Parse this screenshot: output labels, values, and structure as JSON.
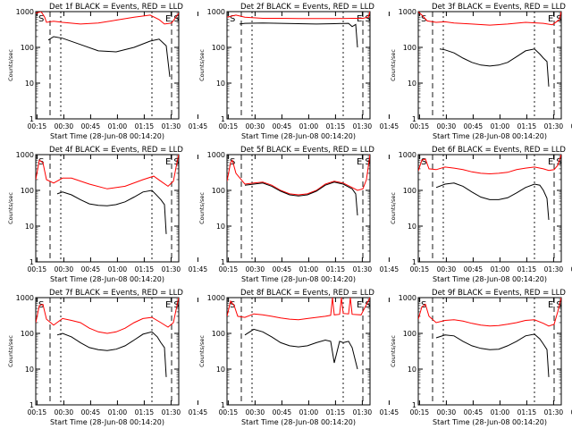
{
  "chart_data": [
    {
      "type": "line",
      "title": "Det 1f BLACK = Events, RED = LLD",
      "xlabel": "Start Time (28-Jun-08 00:14:20)",
      "ylabel": "Counts/sec",
      "ylim": [
        1,
        1000
      ],
      "yscale": "log",
      "x_ticks": [
        "00:15",
        "00:30",
        "00:45",
        "01:00",
        "01:15",
        "01:30",
        "01:45"
      ],
      "y_ticks": [
        "1",
        "10",
        "100",
        "1000"
      ],
      "markers": {
        "S_left": "S",
        "E": "E",
        "S_right": "S"
      },
      "series": [
        {
          "color": "#ff0000",
          "x": [
            0,
            3,
            5,
            6,
            10,
            15,
            25,
            35,
            45,
            55,
            64,
            69,
            72,
            76,
            80
          ],
          "y": [
            900,
            1000,
            700,
            500,
            540,
            500,
            450,
            480,
            580,
            700,
            800,
            600,
            450,
            480,
            900
          ]
        },
        {
          "color": "#000000",
          "x": [
            7,
            10,
            15,
            25,
            35,
            45,
            55,
            64,
            69,
            73,
            75
          ],
          "y": [
            160,
            200,
            180,
            120,
            80,
            75,
            100,
            150,
            170,
            110,
            15
          ]
        }
      ]
    },
    {
      "type": "line",
      "title": "Det 2f BLACK = Events, RED = LLD",
      "xlabel": "Start Time (28-Jun-08 00:14:20)",
      "ylabel": "Counts/sec",
      "ylim": [
        1,
        1000
      ],
      "yscale": "log",
      "x_ticks": [
        "00:15",
        "00:30",
        "00:45",
        "01:00",
        "01:15",
        "01:30",
        "01:45"
      ],
      "y_ticks": [
        "1",
        "10",
        "100",
        "1000"
      ],
      "markers": {
        "S_left": "S",
        "E": "E",
        "S_right": "S"
      },
      "series": [
        {
          "color": "#ff0000",
          "x": [
            0,
            5,
            10,
            20,
            30,
            40,
            50,
            60,
            70,
            76,
            79,
            80
          ],
          "y": [
            700,
            800,
            700,
            650,
            650,
            640,
            640,
            640,
            650,
            650,
            700,
            1000
          ]
        },
        {
          "color": "#000000",
          "x": [
            7,
            10,
            20,
            30,
            40,
            50,
            60,
            68,
            70,
            72,
            73
          ],
          "y": [
            450,
            470,
            480,
            470,
            460,
            450,
            460,
            470,
            380,
            440,
            100
          ]
        }
      ]
    },
    {
      "type": "line",
      "title": "Det 3f BLACK = Events, RED = LLD",
      "xlabel": "Start Time (28-Jun-08 00:14:20)",
      "ylabel": "Counts/sec",
      "ylim": [
        1,
        1000
      ],
      "yscale": "log",
      "x_ticks": [
        "00:15",
        "00:30",
        "00:45",
        "01:00",
        "01:15",
        "01:30",
        "01:45"
      ],
      "y_ticks": [
        "1",
        "10",
        "100",
        "1000"
      ],
      "markers": {
        "S_left": "S",
        "E": "E",
        "S_right": "S"
      },
      "series": [
        {
          "color": "#ff0000",
          "x": [
            0,
            2,
            5,
            10,
            15,
            20,
            30,
            40,
            50,
            60,
            70,
            75,
            79,
            80
          ],
          "y": [
            1000,
            800,
            550,
            500,
            520,
            480,
            450,
            420,
            450,
            500,
            470,
            430,
            600,
            1000
          ]
        },
        {
          "color": "#000000",
          "x": [
            12,
            15,
            20,
            25,
            30,
            35,
            40,
            45,
            50,
            55,
            60,
            65,
            68,
            70,
            72,
            73
          ],
          "y": [
            90,
            85,
            70,
            50,
            38,
            32,
            30,
            32,
            38,
            55,
            80,
            90,
            65,
            50,
            40,
            8
          ]
        }
      ]
    },
    {
      "type": "line",
      "title": "Det 4f BLACK = Events, RED = LLD",
      "xlabel": "Start Time (28-Jun-08 00:14:20)",
      "ylabel": "Counts/sec",
      "ylim": [
        1,
        1000
      ],
      "yscale": "log",
      "x_ticks": [
        "00:15",
        "00:30",
        "00:45",
        "01:00",
        "01:15",
        "01:30",
        "01:45"
      ],
      "y_ticks": [
        "1",
        "10",
        "100",
        "1000"
      ],
      "markers": {
        "S_left": "S",
        "E": "E",
        "S_right": "S"
      },
      "series": [
        {
          "color": "#ff0000",
          "x": [
            0,
            2,
            4,
            6,
            10,
            15,
            20,
            30,
            40,
            50,
            60,
            66,
            70,
            74,
            77,
            79,
            80
          ],
          "y": [
            200,
            700,
            600,
            200,
            160,
            220,
            220,
            150,
            110,
            130,
            200,
            250,
            180,
            130,
            180,
            600,
            1000
          ]
        },
        {
          "color": "#000000",
          "x": [
            12,
            15,
            20,
            25,
            30,
            35,
            40,
            45,
            50,
            55,
            60,
            65,
            68,
            70,
            72,
            73
          ],
          "y": [
            80,
            90,
            75,
            55,
            42,
            38,
            37,
            40,
            48,
            65,
            90,
            100,
            70,
            55,
            40,
            6
          ]
        }
      ]
    },
    {
      "type": "line",
      "title": "Det 5f BLACK = Events, RED = LLD",
      "xlabel": "Start Time (28-Jun-08 00:14:20)",
      "ylabel": "Counts/sec",
      "ylim": [
        1,
        1000
      ],
      "yscale": "log",
      "x_ticks": [
        "00:15",
        "00:30",
        "00:45",
        "01:00",
        "01:15",
        "01:30",
        "01:45"
      ],
      "y_ticks": [
        "1",
        "10",
        "100",
        "1000"
      ],
      "markers": {
        "S_left": "S",
        "E": "E",
        "S_right": "S"
      },
      "series": [
        {
          "color": "#ff0000",
          "x": [
            0,
            2,
            3,
            5,
            10,
            15,
            20,
            25,
            30,
            35,
            40,
            45,
            50,
            55,
            60,
            65,
            70,
            73,
            76,
            78,
            80
          ],
          "y": [
            180,
            600,
            700,
            300,
            150,
            160,
            170,
            140,
            100,
            80,
            75,
            80,
            100,
            150,
            180,
            160,
            120,
            100,
            110,
            200,
            1000
          ]
        },
        {
          "color": "#000000",
          "x": [
            10,
            15,
            20,
            25,
            30,
            35,
            40,
            45,
            50,
            55,
            60,
            65,
            70,
            72,
            73
          ],
          "y": [
            140,
            150,
            160,
            130,
            95,
            75,
            70,
            75,
            95,
            140,
            170,
            150,
            110,
            80,
            20
          ]
        }
      ]
    },
    {
      "type": "line",
      "title": "Det 6f BLACK = Events, RED = LLD",
      "xlabel": "Start Time (28-Jun-08 00:14:20)",
      "ylabel": "Counts/sec",
      "ylim": [
        1,
        1000
      ],
      "yscale": "log",
      "x_ticks": [
        "00:15",
        "00:30",
        "00:45",
        "01:00",
        "01:15",
        "01:30",
        "01:45"
      ],
      "y_ticks": [
        "1",
        "10",
        "100",
        "1000"
      ],
      "markers": {
        "S_left": "S",
        "E": "E",
        "S_right": "S"
      },
      "series": [
        {
          "color": "#ff0000",
          "x": [
            0,
            2,
            4,
            6,
            10,
            15,
            20,
            25,
            30,
            35,
            40,
            45,
            50,
            55,
            60,
            65,
            70,
            73,
            76,
            78,
            80
          ],
          "y": [
            350,
            700,
            750,
            400,
            380,
            450,
            420,
            380,
            330,
            300,
            290,
            300,
            320,
            380,
            420,
            450,
            400,
            360,
            380,
            500,
            1000
          ]
        },
        {
          "color": "#000000",
          "x": [
            10,
            15,
            20,
            25,
            30,
            35,
            40,
            45,
            50,
            55,
            60,
            65,
            68,
            70,
            72,
            73
          ],
          "y": [
            120,
            150,
            160,
            130,
            90,
            65,
            55,
            55,
            62,
            85,
            120,
            150,
            140,
            100,
            60,
            15
          ]
        }
      ]
    },
    {
      "type": "line",
      "title": "Det 7f BLACK = Events, RED = LLD",
      "xlabel": "Start Time (28-Jun-08 00:14:20)",
      "ylabel": "Counts/sec",
      "ylim": [
        1,
        1000
      ],
      "yscale": "log",
      "x_ticks": [
        "00:15",
        "00:30",
        "00:45",
        "01:00",
        "01:15",
        "01:30",
        "01:45"
      ],
      "y_ticks": [
        "1",
        "10",
        "100",
        "1000"
      ],
      "markers": {
        "S_left": "S",
        "E": "E",
        "S_right": "S"
      },
      "series": [
        {
          "color": "#ff0000",
          "x": [
            0,
            2,
            4,
            6,
            10,
            15,
            20,
            25,
            30,
            35,
            40,
            45,
            50,
            55,
            60,
            65,
            70,
            74,
            77,
            79,
            80
          ],
          "y": [
            200,
            600,
            650,
            250,
            170,
            260,
            230,
            200,
            140,
            110,
            100,
            110,
            140,
            200,
            260,
            280,
            200,
            150,
            200,
            600,
            1000
          ]
        },
        {
          "color": "#000000",
          "x": [
            12,
            15,
            20,
            25,
            30,
            35,
            40,
            45,
            50,
            55,
            60,
            65,
            68,
            70,
            72,
            73
          ],
          "y": [
            90,
            100,
            80,
            55,
            40,
            35,
            33,
            36,
            45,
            65,
            95,
            110,
            80,
            55,
            40,
            6
          ]
        }
      ]
    },
    {
      "type": "line",
      "title": "Det 8f BLACK = Events, RED = LLD",
      "xlabel": "Start Time (28-Jun-08 00:14:20)",
      "ylabel": "Counts/sec",
      "ylim": [
        1,
        1000
      ],
      "yscale": "log",
      "x_ticks": [
        "00:15",
        "00:30",
        "00:45",
        "01:00",
        "01:15",
        "01:30",
        "01:45"
      ],
      "y_ticks": [
        "1",
        "10",
        "100",
        "1000"
      ],
      "markers": {
        "S_left": "S",
        "E": "E",
        "S_right": "S"
      },
      "series": [
        {
          "color": "#ff0000",
          "x": [
            0,
            2,
            4,
            6,
            10,
            15,
            20,
            25,
            30,
            35,
            40,
            45,
            50,
            55,
            58,
            59,
            60,
            63,
            64,
            65,
            68,
            69,
            70,
            75,
            80
          ],
          "y": [
            300,
            800,
            600,
            300,
            280,
            350,
            330,
            300,
            270,
            250,
            240,
            260,
            280,
            300,
            320,
            1000,
            330,
            340,
            1000,
            360,
            350,
            1000,
            340,
            330,
            1000
          ]
        },
        {
          "color": "#000000",
          "x": [
            10,
            15,
            20,
            25,
            30,
            35,
            40,
            45,
            50,
            55,
            58,
            60,
            63,
            65,
            68,
            70,
            73
          ],
          "y": [
            90,
            130,
            110,
            80,
            55,
            45,
            42,
            45,
            55,
            65,
            60,
            15,
            60,
            55,
            60,
            40,
            10
          ]
        }
      ]
    },
    {
      "type": "line",
      "title": "Det 9f BLACK = Events, RED = LLD",
      "xlabel": "Start Time (28-Jun-08 00:14:20)",
      "ylabel": "Counts/sec",
      "ylim": [
        1,
        1000
      ],
      "yscale": "log",
      "x_ticks": [
        "00:15",
        "00:30",
        "00:45",
        "01:00",
        "01:15",
        "01:30",
        "01:45"
      ],
      "y_ticks": [
        "1",
        "10",
        "100",
        "1000"
      ],
      "markers": {
        "S_left": "S",
        "E": "E",
        "S_right": "S"
      },
      "series": [
        {
          "color": "#ff0000",
          "x": [
            0,
            2,
            4,
            6,
            10,
            15,
            20,
            25,
            30,
            35,
            40,
            45,
            50,
            55,
            60,
            65,
            70,
            73,
            76,
            78,
            80
          ],
          "y": [
            250,
            550,
            650,
            300,
            200,
            230,
            240,
            220,
            190,
            170,
            160,
            165,
            180,
            200,
            230,
            240,
            190,
            160,
            180,
            400,
            1000
          ]
        },
        {
          "color": "#000000",
          "x": [
            10,
            15,
            20,
            25,
            30,
            35,
            40,
            45,
            50,
            55,
            60,
            65,
            68,
            70,
            72,
            73
          ],
          "y": [
            75,
            90,
            85,
            60,
            45,
            38,
            35,
            36,
            45,
            60,
            85,
            95,
            70,
            50,
            35,
            6
          ]
        }
      ]
    }
  ]
}
